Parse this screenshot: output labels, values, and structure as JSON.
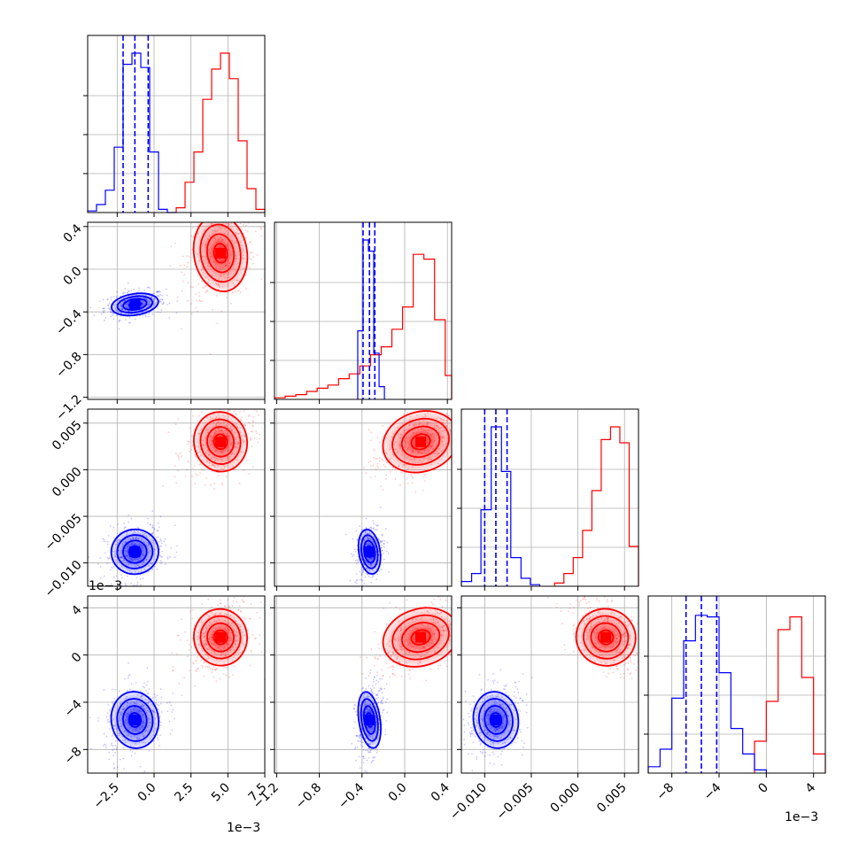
{
  "figure": {
    "colors": {
      "blue": "#0000ff",
      "red": "#ff0000",
      "grid": "#b0b0b0",
      "frame": "#000000"
    },
    "exponent_labels": {
      "panel_10_y": "1e−3",
      "bottom_x0": "1e−3",
      "bottom_x3": "1e−3"
    }
  },
  "chart_data": {
    "type": "corner",
    "params": [
      {
        "index": 0,
        "range": [
          -4.5,
          7.5
        ],
        "ticks": [
          -2.5,
          0.0,
          2.5,
          5.0,
          7.5
        ],
        "tick_labels": [
          "−2.5",
          "0.0",
          "2.5",
          "5.0",
          "7.5"
        ],
        "scale_note": "1e−3"
      },
      {
        "index": 1,
        "range": [
          -1.22,
          0.44
        ],
        "ticks": [
          -1.2,
          -0.8,
          -0.4,
          0.0,
          0.4
        ],
        "tick_labels": [
          "−1.2",
          "−0.8",
          "−0.4",
          "0.0",
          "0.4"
        ]
      },
      {
        "index": 2,
        "range": [
          -0.0125,
          0.0065
        ],
        "ticks": [
          -0.01,
          -0.005,
          0.0,
          0.005
        ],
        "tick_labels": [
          "−0.010",
          "−0.005",
          "0.000",
          "0.005"
        ]
      },
      {
        "index": 3,
        "range": [
          -10.0,
          5.0
        ],
        "ticks": [
          -8,
          -4,
          0,
          4
        ],
        "tick_labels": [
          "−8",
          "−4",
          "0",
          "4"
        ],
        "scale_note": "1e−3"
      }
    ],
    "series": [
      {
        "color": "blue",
        "mean": [
          -1.3,
          -0.33,
          -0.0088,
          -5.5
        ],
        "std": [
          0.8,
          0.05,
          0.0012,
          1.2
        ],
        "quantiles_shown": true
      },
      {
        "color": "red",
        "mean": [
          4.5,
          0.15,
          0.003,
          1.5
        ],
        "std": [
          0.9,
          0.18,
          0.0016,
          1.2
        ],
        "quantiles_shown": false
      }
    ],
    "histograms": [
      {
        "param": 0,
        "blue_edges": [
          -4.5,
          -3.9,
          -3.3,
          -2.7,
          -2.1,
          -1.5,
          -0.9,
          -0.3,
          0.3,
          0.9,
          1.5
        ],
        "blue_counts": [
          0.01,
          0.05,
          0.14,
          0.41,
          0.93,
          1.0,
          0.91,
          0.38,
          0.02,
          0.0
        ],
        "blue_quantiles": [
          -2.1,
          -1.3,
          -0.4
        ],
        "red_edges": [
          1.5,
          2.1,
          2.7,
          3.3,
          3.9,
          4.5,
          5.1,
          5.7,
          6.3,
          6.9,
          7.5
        ],
        "red_counts": [
          0.03,
          0.19,
          0.38,
          0.71,
          0.9,
          1.0,
          0.84,
          0.45,
          0.15,
          0.02
        ]
      },
      {
        "param": 1,
        "blue_edges": [
          -0.44,
          -0.39,
          -0.34,
          -0.29,
          -0.24,
          -0.19
        ],
        "blue_counts": [
          0.43,
          1.0,
          0.93,
          0.29,
          0.08
        ],
        "blue_quantiles": [
          -0.39,
          -0.33,
          -0.28
        ],
        "red_edges": [
          -1.22,
          -1.12,
          -1.02,
          -0.92,
          -0.82,
          -0.72,
          -0.62,
          -0.52,
          -0.42,
          -0.32,
          -0.22,
          -0.12,
          -0.02,
          0.08,
          0.18,
          0.28,
          0.38,
          0.44
        ],
        "red_counts": [
          0.01,
          0.02,
          0.03,
          0.05,
          0.07,
          0.09,
          0.13,
          0.16,
          0.21,
          0.28,
          0.33,
          0.44,
          0.58,
          0.91,
          0.88,
          0.5,
          0.15
        ]
      },
      {
        "param": 2,
        "blue_edges": [
          -0.0125,
          -0.0114,
          -0.0104,
          -0.0093,
          -0.0082,
          -0.0072,
          -0.0061,
          -0.0051,
          -0.0041
        ],
        "blue_counts": [
          0.03,
          0.08,
          0.48,
          1.0,
          0.72,
          0.18,
          0.05,
          0.01
        ],
        "blue_quantiles": [
          -0.01,
          -0.0088,
          -0.0076
        ],
        "red_edges": [
          -0.0025,
          -0.0015,
          -0.0005,
          0.0005,
          0.0015,
          0.0025,
          0.0035,
          0.0045,
          0.0055,
          0.0065
        ],
        "red_counts": [
          0.02,
          0.08,
          0.18,
          0.35,
          0.6,
          0.92,
          1.0,
          0.9,
          0.25
        ]
      },
      {
        "param": 3,
        "blue_edges": [
          -10.0,
          -9.0,
          -8.0,
          -7.0,
          -6.0,
          -5.0,
          -4.0,
          -3.0,
          -2.0,
          -1.0,
          0.0
        ],
        "blue_counts": [
          0.04,
          0.15,
          0.47,
          0.83,
          0.99,
          0.98,
          0.63,
          0.28,
          0.12,
          0.02
        ],
        "blue_quantiles": [
          -6.8,
          -5.5,
          -4.2
        ],
        "red_edges": [
          -1.0,
          0.0,
          1.0,
          2.0,
          3.0,
          4.0,
          5.0
        ],
        "red_counts": [
          0.2,
          0.45,
          0.9,
          0.98,
          0.6,
          0.12
        ]
      }
    ],
    "grid": true,
    "xlabel": "",
    "ylabel": ""
  }
}
